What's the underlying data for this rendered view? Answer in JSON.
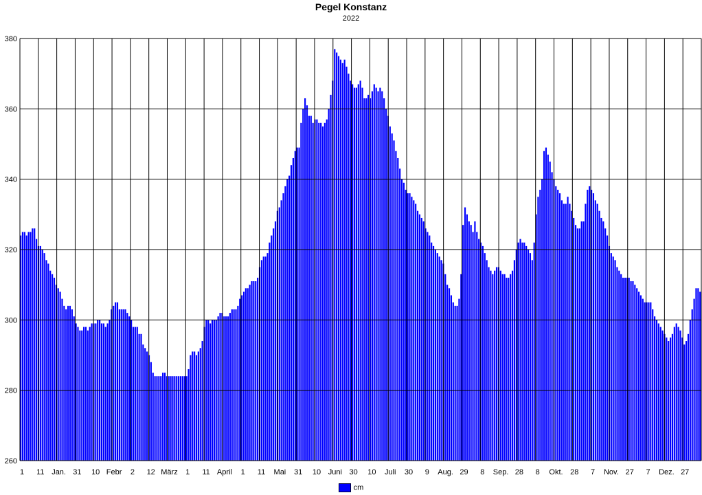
{
  "chart_data": {
    "type": "bar",
    "title": "Pegel Konstanz",
    "subtitle": "2022",
    "xlabel": "",
    "ylabel": "",
    "ylim": [
      260,
      380
    ],
    "y_ticks": [
      260,
      280,
      300,
      320,
      340,
      360,
      380
    ],
    "grid": true,
    "bar_color": "#0000ff",
    "x_tick_labels": [
      "1",
      "11",
      "Jan.",
      "31",
      "10",
      "Febr",
      "2",
      "12",
      "März",
      "1",
      "11",
      "April",
      "1",
      "11",
      "Mai",
      "31",
      "10",
      "Juni",
      "30",
      "10",
      "Juli",
      "30",
      "9",
      "Aug.",
      "29",
      "8",
      "Sep.",
      "28",
      "8",
      "Okt.",
      "28",
      "7",
      "Nov.",
      "27",
      "7",
      "Dez.",
      "27"
    ],
    "legend": [
      "cm"
    ],
    "legend_position": "bottom",
    "series": [
      {
        "name": "cm",
        "values": [
          324,
          325,
          325,
          324,
          325,
          325,
          326,
          326,
          323,
          321,
          321,
          320,
          319,
          317,
          316,
          314,
          313,
          312,
          310,
          309,
          308,
          306,
          304,
          303,
          304,
          304,
          303,
          301,
          299,
          298,
          297,
          297,
          298,
          298,
          297,
          298,
          299,
          299,
          299,
          300,
          300,
          299,
          299,
          298,
          299,
          300,
          303,
          304,
          305,
          305,
          303,
          303,
          303,
          303,
          302,
          301,
          300,
          298,
          298,
          298,
          296,
          296,
          293,
          292,
          291,
          290,
          288,
          285,
          284,
          284,
          284,
          284,
          285,
          285,
          284,
          284,
          284,
          284,
          284,
          284,
          284,
          284,
          284,
          284,
          284,
          286,
          290,
          291,
          291,
          290,
          291,
          292,
          294,
          298,
          300,
          300,
          299,
          300,
          300,
          300,
          301,
          302,
          302,
          301,
          301,
          301,
          302,
          303,
          303,
          303,
          304,
          306,
          307,
          308,
          309,
          309,
          310,
          311,
          311,
          311,
          312,
          315,
          317,
          318,
          318,
          319,
          322,
          324,
          326,
          328,
          331,
          332,
          334,
          336,
          338,
          340,
          341,
          344,
          346,
          348,
          349,
          349,
          356,
          360,
          363,
          361,
          358,
          358,
          356,
          357,
          357,
          356,
          356,
          355,
          356,
          357,
          360,
          364,
          368,
          377,
          376,
          375,
          374,
          373,
          374,
          372,
          370,
          368,
          367,
          366,
          366,
          367,
          368,
          366,
          363,
          363,
          364,
          363,
          365,
          367,
          366,
          365,
          366,
          365,
          363,
          360,
          358,
          355,
          353,
          351,
          348,
          346,
          343,
          340,
          339,
          337,
          336,
          336,
          335,
          334,
          333,
          331,
          330,
          329,
          328,
          326,
          325,
          324,
          322,
          321,
          320,
          319,
          318,
          317,
          316,
          313,
          310,
          309,
          307,
          305,
          304,
          304,
          306,
          313,
          327,
          332,
          330,
          328,
          327,
          325,
          328,
          325,
          323,
          322,
          321,
          319,
          317,
          315,
          314,
          313,
          314,
          315,
          315,
          314,
          313,
          313,
          312,
          312,
          313,
          314,
          317,
          320,
          322,
          323,
          322,
          322,
          321,
          320,
          319,
          317,
          322,
          330,
          335,
          337,
          340,
          348,
          349,
          347,
          345,
          342,
          340,
          338,
          337,
          336,
          334,
          333,
          333,
          335,
          333,
          331,
          329,
          327,
          326,
          326,
          328,
          328,
          333,
          337,
          338,
          337,
          336,
          334,
          333,
          331,
          329,
          328,
          326,
          324,
          321,
          319,
          318,
          317,
          315,
          314,
          313,
          312,
          312,
          312,
          312,
          311,
          311,
          310,
          309,
          308,
          307,
          306,
          305,
          305,
          305,
          305,
          303,
          301,
          300,
          299,
          298,
          297,
          296,
          295,
          294,
          295,
          296,
          298,
          299,
          298,
          297,
          295,
          293,
          294,
          296,
          300,
          303,
          306,
          309,
          309,
          308
        ]
      }
    ]
  }
}
